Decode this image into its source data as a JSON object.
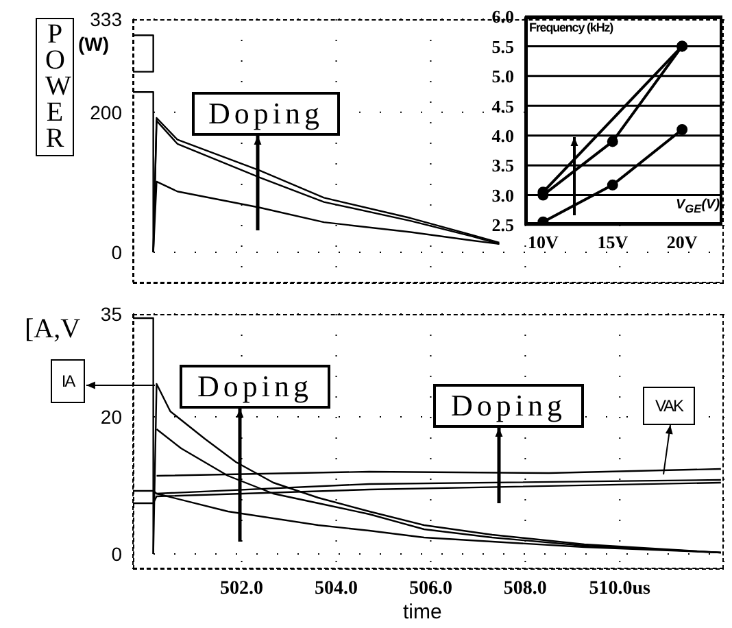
{
  "chart_data": [
    {
      "type": "line",
      "ylabel": "POWER",
      "xlim": [
        499.7,
        512.2
      ],
      "xticks": [
        502,
        504,
        506,
        508,
        510
      ],
      "ylim": [
        -43,
        333
      ],
      "yticks": [
        0,
        200,
        333
      ],
      "tick_labels": "y",
      "grid": true,
      "marker": "none",
      "line_style": "solid",
      "annotations": [
        "(W)",
        "Doping"
      ],
      "series": [
        {
          "color": "#000000",
          "x": [
            500.13,
            500.2,
            500.64,
            502.38,
            503.74,
            505.57,
            506.87,
            507.45
          ],
          "values": [
            0,
            192,
            161,
            117,
            78,
            49,
            25,
            14
          ]
        },
        {
          "color": "#000000",
          "x": [
            500.13,
            500.2,
            500.64,
            502.38,
            503.74,
            505.57,
            506.87,
            507.45
          ],
          "values": [
            0,
            188,
            155,
            107,
            72,
            45,
            23,
            12
          ]
        },
        {
          "color": "#000000",
          "x": [
            500.13,
            500.2,
            500.64,
            502.38,
            503.74,
            505.57,
            506.87,
            507.45
          ],
          "values": [
            0,
            101,
            87,
            64,
            43,
            29,
            17,
            12
          ]
        },
        {
          "color": "#000000",
          "x": [
            499.7,
            500.13,
            500.13
          ],
          "values": [
            229,
            229,
            0
          ]
        },
        {
          "color": "#000000",
          "x": [
            499.7,
            500.13,
            500.13,
            499.7
          ],
          "values": [
            310,
            310,
            258,
            258
          ]
        }
      ]
    },
    {
      "type": "line",
      "title": "Frequency (kHz)",
      "xlabel": "V$_{GE}$(V)",
      "xlim": [
        8.7,
        22.9
      ],
      "xticks": [
        {
          "value": 10,
          "label": "10V"
        },
        {
          "value": 15,
          "label": "15V"
        },
        {
          "value": 20,
          "label": "20V"
        }
      ],
      "ylim": [
        2.5,
        6.0
      ],
      "yticks": [
        {
          "value": 2.5,
          "label": "2.5"
        },
        {
          "value": 3,
          "label": "3.0"
        },
        {
          "value": 3.5,
          "label": "3.5"
        },
        {
          "value": 4,
          "label": "4.0"
        },
        {
          "value": 4.5,
          "label": "4.5"
        },
        {
          "value": 5,
          "label": "5.0"
        },
        {
          "value": 5.5,
          "label": "5.5"
        },
        {
          "value": 6,
          "label": "6.0"
        }
      ],
      "grid": "y",
      "marker": "circle",
      "line_style": "solid",
      "series": [
        {
          "color": "#000000",
          "x": [
            10,
            20
          ],
          "values": [
            3.05,
            5.5
          ]
        },
        {
          "color": "#000000",
          "x": [
            10,
            15,
            20
          ],
          "values": [
            3.0,
            3.9,
            5.5
          ]
        },
        {
          "color": "#000000",
          "x": [
            10,
            15,
            20
          ],
          "values": [
            2.55,
            3.17,
            4.1
          ]
        }
      ]
    },
    {
      "type": "line",
      "xlabel": "time",
      "ylabel": "[A,V",
      "xlim": [
        499.7,
        512.2
      ],
      "xticks": [
        {
          "value": 502,
          "label": "502.0"
        },
        {
          "value": 504,
          "label": "504.0"
        },
        {
          "value": 506,
          "label": "506.0"
        },
        {
          "value": 508,
          "label": "508.0"
        },
        {
          "value": 510,
          "label": "510.0us"
        }
      ],
      "ylim": [
        -2.2,
        35
      ],
      "yticks": [
        0,
        20,
        35
      ],
      "grid": true,
      "marker": "none",
      "line_style": "solid",
      "annotations": [
        "IA",
        "Doping",
        "Doping",
        "VAK"
      ],
      "series": [
        {
          "color": "#000000",
          "x": [
            500.13,
            500.2,
            500.49,
            501.22,
            501.88,
            502.67,
            503.62,
            504.7,
            505.86,
            507.3,
            509.25,
            512.14
          ],
          "values": [
            0,
            24.8,
            20.8,
            16.8,
            13.4,
            10.4,
            8.2,
            6.2,
            4.2,
            2.8,
            1.4,
            0.2
          ]
        },
        {
          "color": "#000000",
          "x": [
            500.2,
            500.72,
            501.71,
            502.67,
            503.62,
            504.7,
            505.86,
            507.3,
            509.25,
            512.14
          ],
          "values": [
            18.2,
            15.4,
            11.4,
            8.8,
            7.4,
            5.8,
            3.6,
            2.4,
            1.2,
            0.2
          ]
        },
        {
          "color": "#000000",
          "x": [
            500.2,
            501.71,
            503.62,
            504.7,
            505.86,
            507.3,
            509.25,
            512.14
          ],
          "values": [
            8.8,
            6.2,
            4.2,
            3.4,
            2.4,
            1.8,
            1.0,
            0.2
          ]
        },
        {
          "color": "#000000",
          "x": [
            500.2,
            504.7,
            508.5,
            512.14
          ],
          "values": [
            11.4,
            12,
            11.8,
            12.4
          ]
        },
        {
          "color": "#000000",
          "x": [
            499.7,
            500.13,
            500.2,
            504.7,
            512.14
          ],
          "values": [
            9.2,
            9.2,
            8.8,
            10.2,
            10.8
          ]
        },
        {
          "color": "#000000",
          "x": [
            499.7,
            500.13,
            500.2,
            504.7,
            512.14
          ],
          "values": [
            7.4,
            7.4,
            8.4,
            9.4,
            10.4
          ]
        },
        {
          "color": "#000000",
          "x": [
            499.7,
            500.13,
            500.13
          ],
          "values": [
            34.4,
            34.4,
            0
          ]
        }
      ]
    }
  ]
}
